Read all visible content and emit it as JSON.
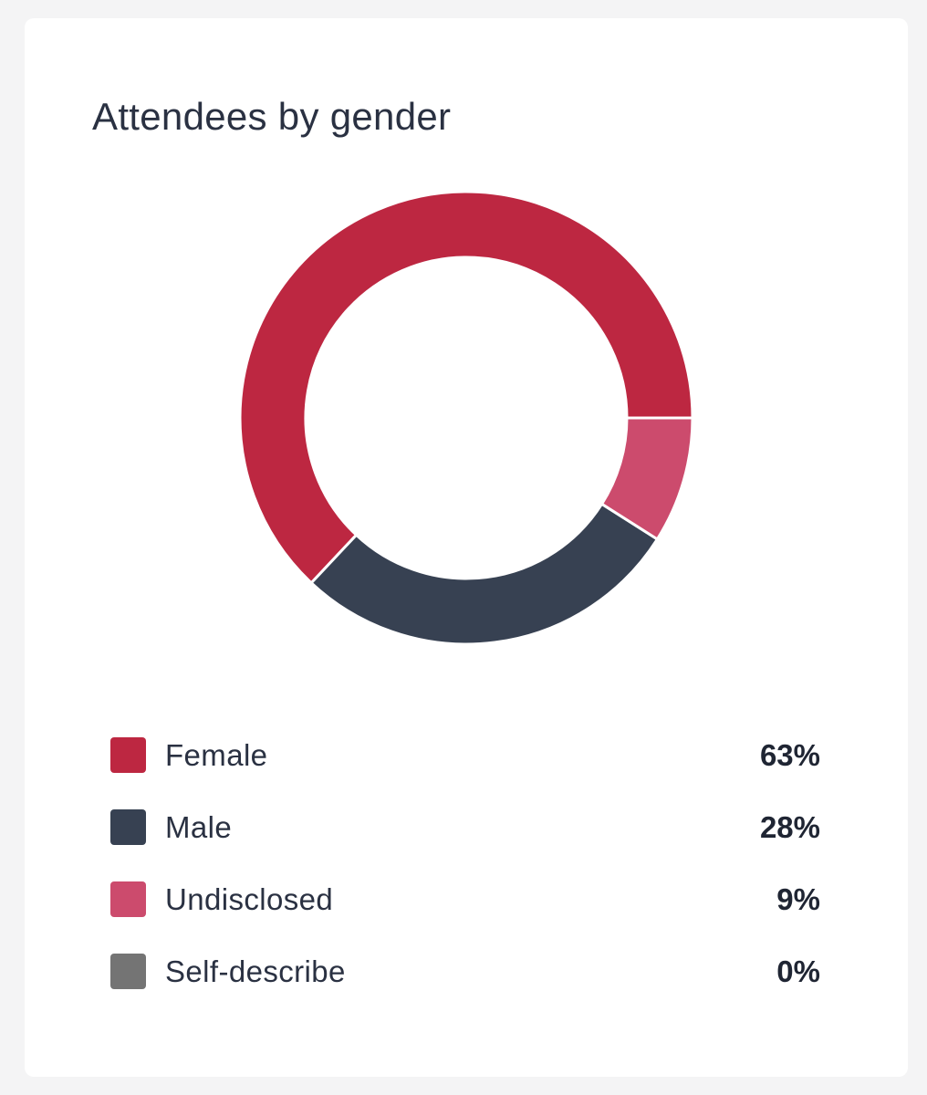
{
  "card": {
    "title": "Attendees by gender"
  },
  "colors": {
    "female": "#bd2741",
    "male": "#374152",
    "undisclosed": "#cc4b6d",
    "self_describe": "#747474"
  },
  "chart_data": {
    "type": "pie",
    "variant": "donut",
    "title": "Attendees by gender",
    "categories": [
      "Female",
      "Male",
      "Undisclosed",
      "Self-describe"
    ],
    "values": [
      63,
      28,
      9,
      0
    ],
    "unit": "%",
    "legend": "bottom",
    "legend_items": [
      {
        "label": "Female",
        "value": "63%",
        "color": "#bd2741"
      },
      {
        "label": "Male",
        "value": "28%",
        "color": "#374152"
      },
      {
        "label": "Undisclosed",
        "value": "9%",
        "color": "#cc4b6d"
      },
      {
        "label": "Self-describe",
        "value": "0%",
        "color": "#747474"
      }
    ]
  }
}
